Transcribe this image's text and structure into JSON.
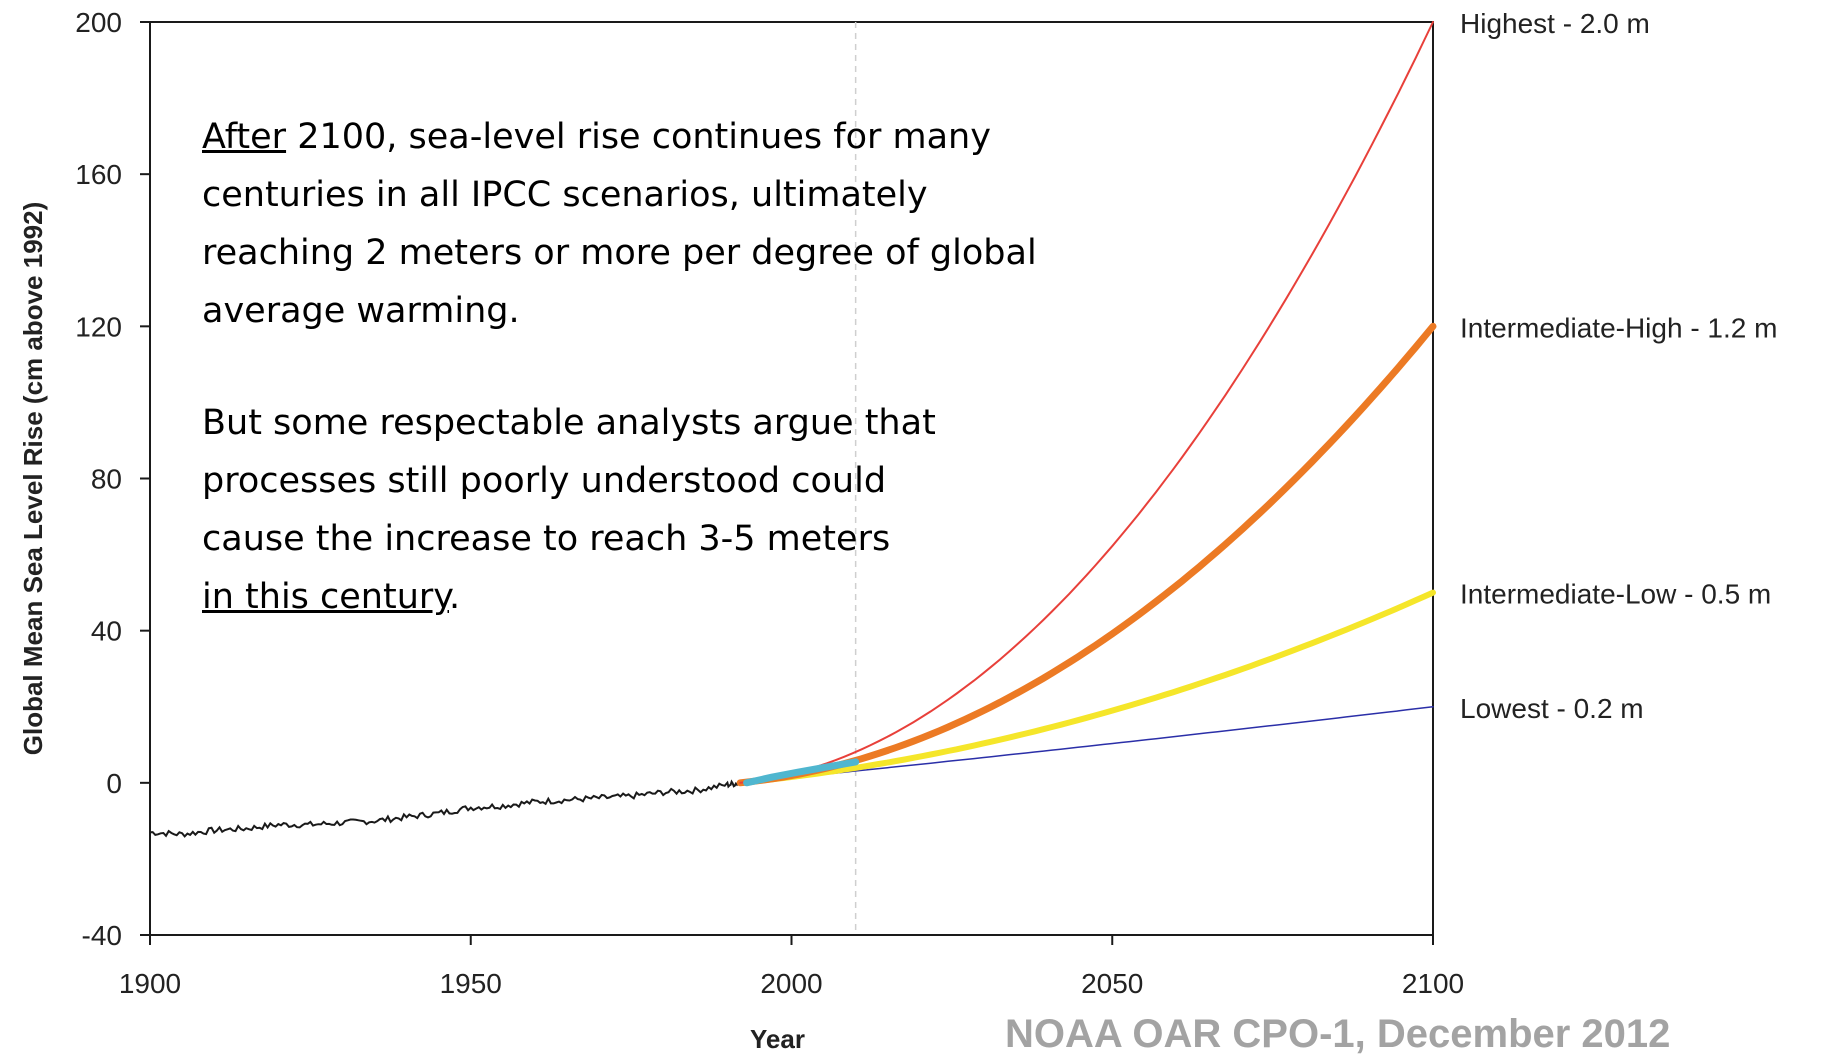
{
  "chart_data": {
    "type": "line",
    "xlabel": "Year",
    "ylabel": "Global Mean Sea Level Rise (cm above 1992)",
    "xlim": [
      1900,
      2100
    ],
    "ylim": [
      -40,
      200
    ],
    "x_ticks": [
      1900,
      1950,
      2000,
      2050,
      2100
    ],
    "y_ticks": [
      -40,
      0,
      40,
      80,
      120,
      160,
      200
    ],
    "grid": false,
    "reference_line_x": 2010,
    "observed": {
      "color": "#1a1a1a",
      "x": [
        1900,
        1905,
        1910,
        1915,
        1920,
        1925,
        1930,
        1935,
        1940,
        1945,
        1950,
        1955,
        1960,
        1965,
        1970,
        1975,
        1980,
        1985,
        1990,
        1992
      ],
      "y": [
        -13,
        -13.5,
        -12.5,
        -12,
        -11,
        -11,
        -10.5,
        -10,
        -9,
        -8,
        -6.5,
        -6,
        -5,
        -4.5,
        -4,
        -3.5,
        -2.5,
        -2,
        -0.5,
        0
      ]
    },
    "satellite": {
      "color": "#4fb6cf",
      "x": [
        1993,
        1997,
        2001,
        2005,
        2010
      ],
      "y": [
        0,
        1.5,
        2.8,
        4,
        5.5
      ]
    },
    "series": [
      {
        "name": "Highest - 2.0 m",
        "color": "#e8403a",
        "width": 2,
        "x": [
          1992,
          2100
        ],
        "end": 200
      },
      {
        "name": "Intermediate-High - 1.2 m",
        "color": "#ec7a24",
        "width": 7,
        "x": [
          1992,
          2100
        ],
        "end": 120
      },
      {
        "name": "Intermediate-Low - 0.5 m",
        "color": "#f5e62a",
        "width": 6,
        "x": [
          1992,
          2100
        ],
        "end": 50
      },
      {
        "name": "Lowest - 0.2 m",
        "color": "#2b2fa8",
        "width": 1.5,
        "x": [
          1992,
          2100
        ],
        "end": 20
      }
    ]
  },
  "annotation": {
    "para1_underlined": "After",
    "para1_rest": " 2100, sea-level rise continues for many\ncenturies in all IPCC scenarios, ultimately\nreaching 2 meters or more per degree of global\naverage warming.",
    "para2_text": "But some respectable analysts argue that\nprocesses still poorly understood could\ncause  the increase to reach 3-5 meters\n",
    "para2_underlined": "in this century",
    "para2_end": "."
  },
  "credit": "NOAA OAR CPO-1, December 2012"
}
